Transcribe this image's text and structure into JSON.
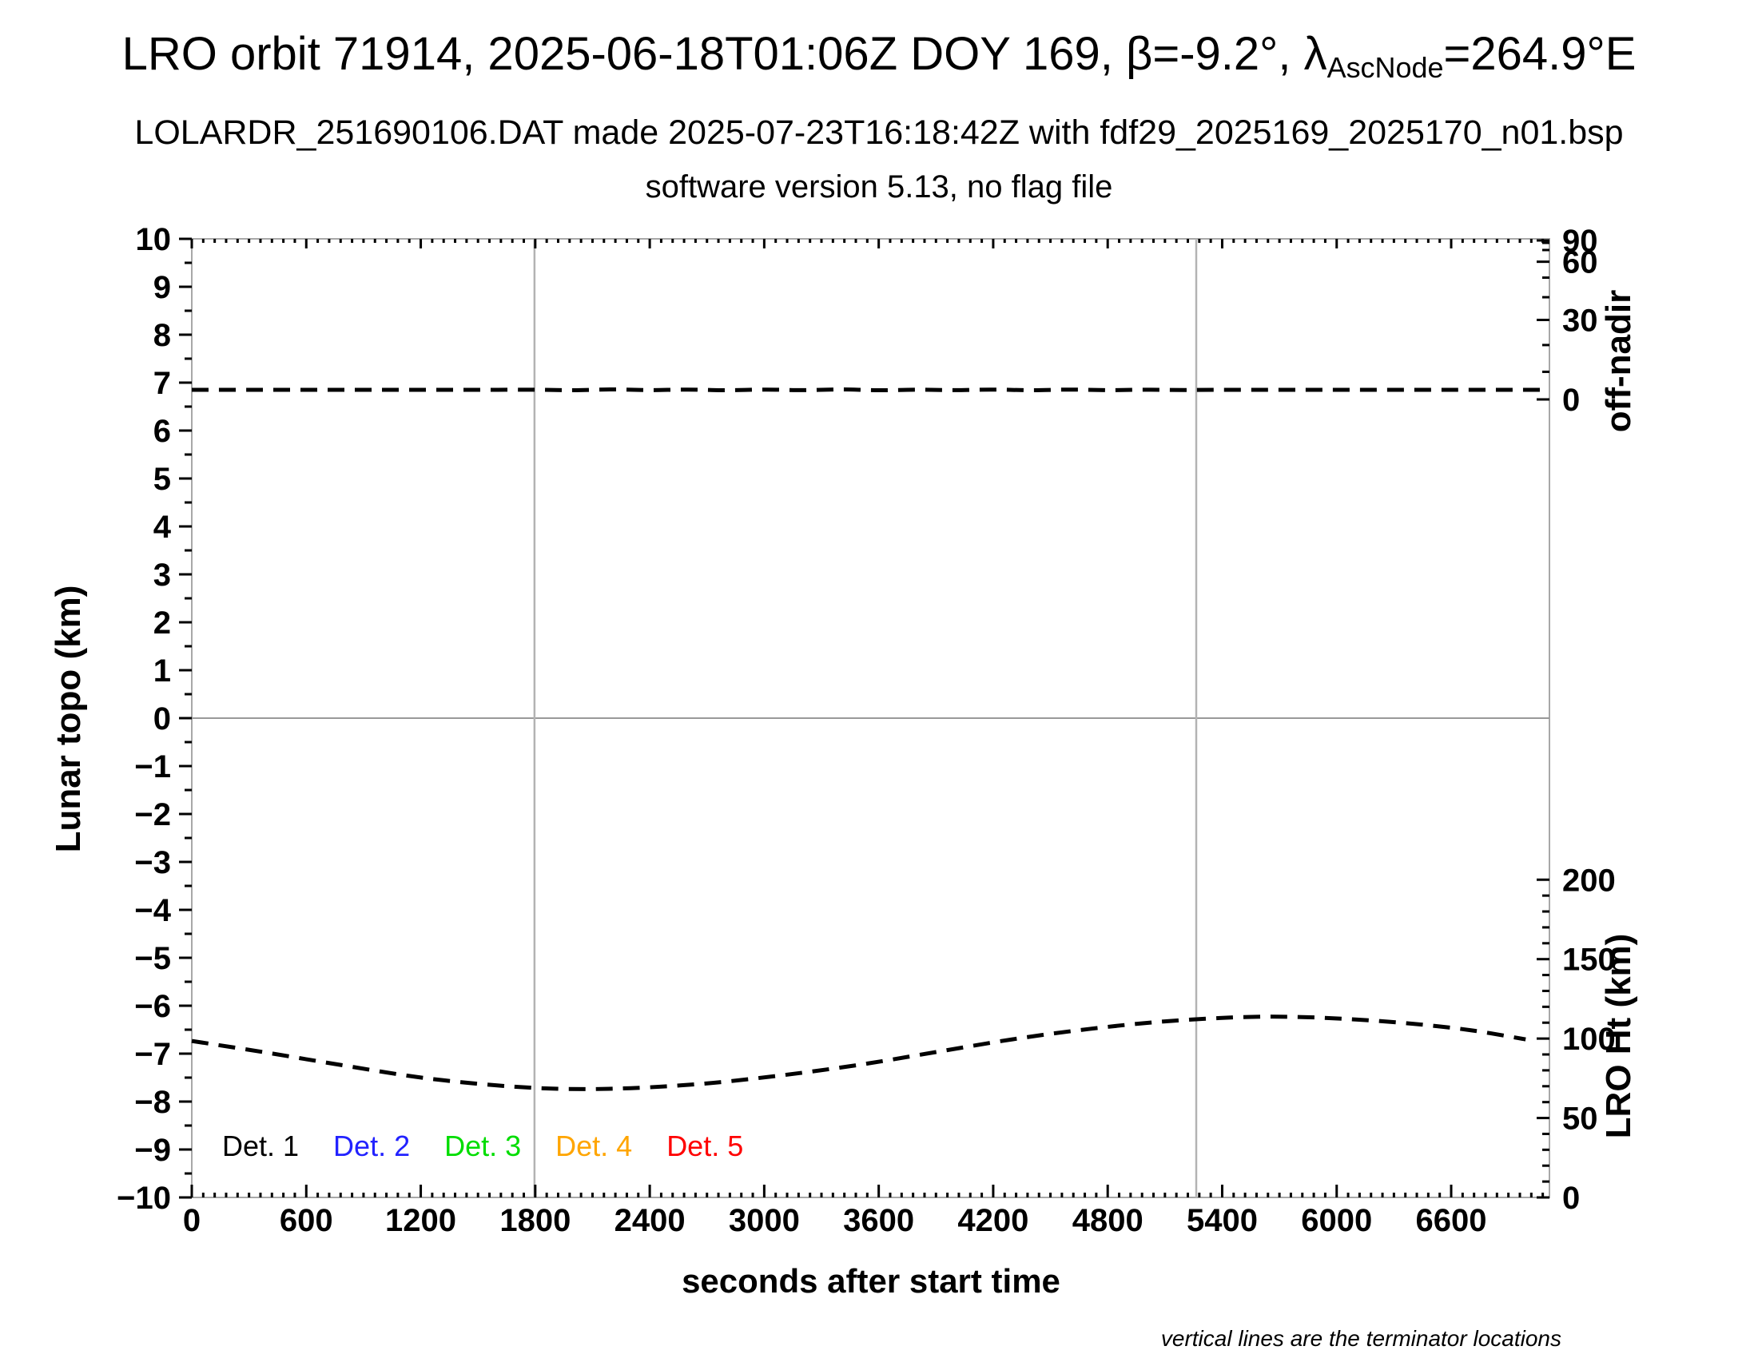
{
  "header": {
    "title_pre": "LRO orbit 71914, 2025-06-18T01:06Z DOY 169, β=-9.2°, λ",
    "title_sub": "AscNode",
    "title_post": "=264.9°E",
    "subtitle1": "LOLARDR_251690106.DAT made 2025-07-23T16:18:42Z with fdf29_2025169_2025170_n01.bsp",
    "subtitle2": "software version 5.13, no flag file"
  },
  "footnote": "vertical lines are the terminator locations",
  "chart_data": {
    "type": "line",
    "title": "",
    "xlabel": "seconds after start time",
    "x": {
      "min": 0,
      "max": 7115,
      "major_step": 600,
      "minor_step": 60,
      "last_label": 6600
    },
    "y_left": {
      "label": "Lunar topo (km)",
      "min": -10,
      "max": 10,
      "major_step": 1,
      "minor_step": 0.5
    },
    "y_right_top": {
      "label": "off-nadir",
      "ticks": [
        90,
        60,
        30,
        0
      ],
      "minor_step_deg": 10,
      "scale": "sine",
      "zero_at_topo": 6.65,
      "amplitude_topo": 3.317
    },
    "y_right_bottom": {
      "label": "LRO Ht (km)",
      "ticks": [
        200,
        150,
        100,
        50,
        0
      ],
      "minor_step": 10,
      "km_per_topo_unit": 30.17
    },
    "zero_line_topo": 0,
    "terminator_times_s": [
      1796,
      5264
    ],
    "grid": "off",
    "legend_position": "inside-bottom-left",
    "legend": [
      {
        "label": "Det. 1",
        "color": "#000000"
      },
      {
        "label": "Det. 2",
        "color": "#2222ff"
      },
      {
        "label": "Det. 3",
        "color": "#00dd00"
      },
      {
        "label": "Det. 4",
        "color": "#ffa500"
      },
      {
        "label": "Det. 5",
        "color": "#ff0000"
      }
    ],
    "series": [
      {
        "name": "off-nadir angle (deg)",
        "axis": "right_top",
        "style": "dashed",
        "color": "#000000",
        "points": [
          [
            0,
            3.45
          ],
          [
            300,
            3.45
          ],
          [
            600,
            3.45
          ],
          [
            900,
            3.45
          ],
          [
            1200,
            3.45
          ],
          [
            1500,
            3.45
          ],
          [
            1800,
            3.5
          ],
          [
            2000,
            3.3
          ],
          [
            2200,
            3.6
          ],
          [
            2400,
            3.35
          ],
          [
            2600,
            3.55
          ],
          [
            2800,
            3.3
          ],
          [
            3000,
            3.55
          ],
          [
            3200,
            3.35
          ],
          [
            3400,
            3.6
          ],
          [
            3600,
            3.3
          ],
          [
            3800,
            3.5
          ],
          [
            4000,
            3.35
          ],
          [
            4200,
            3.55
          ],
          [
            4400,
            3.3
          ],
          [
            4600,
            3.55
          ],
          [
            4800,
            3.35
          ],
          [
            5000,
            3.5
          ],
          [
            5200,
            3.4
          ],
          [
            5400,
            3.45
          ],
          [
            5800,
            3.45
          ],
          [
            6200,
            3.45
          ],
          [
            6600,
            3.45
          ],
          [
            7000,
            3.45
          ],
          [
            7110,
            3.45
          ]
        ]
      },
      {
        "name": "LRO height (km)",
        "axis": "right_bottom",
        "style": "dashed",
        "color": "#000000",
        "points": [
          [
            0,
            98.5
          ],
          [
            400,
            91
          ],
          [
            800,
            83
          ],
          [
            1200,
            75.5
          ],
          [
            1600,
            70.5
          ],
          [
            1950,
            68.3
          ],
          [
            2300,
            68.8
          ],
          [
            2700,
            71.8
          ],
          [
            3100,
            77
          ],
          [
            3500,
            83.5
          ],
          [
            3900,
            91.5
          ],
          [
            4300,
            99.5
          ],
          [
            4700,
            106
          ],
          [
            5100,
            110.8
          ],
          [
            5500,
            113.5
          ],
          [
            5800,
            113.6
          ],
          [
            6100,
            112
          ],
          [
            6400,
            109.3
          ],
          [
            6700,
            105.3
          ],
          [
            6990,
            99.5
          ]
        ]
      }
    ],
    "colors": {
      "frame": "#a8a8a8",
      "zero_line": "#999999",
      "terminator_line": "#b3b3b3",
      "tick": "#000000"
    }
  }
}
